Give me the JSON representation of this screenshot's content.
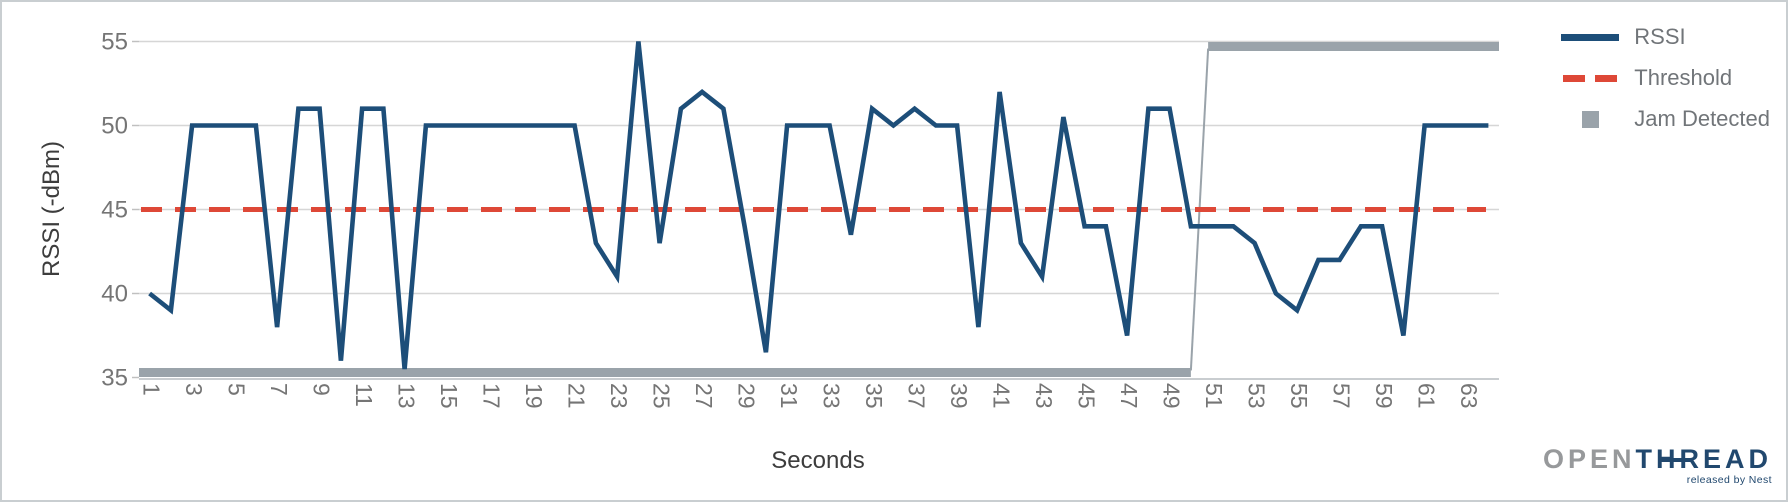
{
  "colors": {
    "rssi_line": "#1d4e79",
    "threshold_line": "#de4837",
    "jam_bar": "#9aa3aa",
    "gridline": "#d6d6d6",
    "axis_line": "#c9cdd0",
    "tick_text": "#757575",
    "axis_title_text": "#3d3d3d"
  },
  "legend": {
    "items": [
      {
        "label": "RSSI",
        "swatch": "solid-line"
      },
      {
        "label": "Threshold",
        "swatch": "dashed-line"
      },
      {
        "label": "Jam Detected",
        "swatch": "square"
      }
    ]
  },
  "logo": {
    "open": "OPEN",
    "thread": "THREAD",
    "tagline": "released by Nest"
  },
  "chart_data": {
    "type": "line",
    "title": "",
    "xlabel": "Seconds",
    "ylabel": "RSSI (-dBm)",
    "x_range": [
      0.5,
      64.5
    ],
    "ylim": [
      35,
      55
    ],
    "grid": true,
    "legend_position": "right-top",
    "y_ticks": [
      55,
      50,
      45,
      40,
      35
    ],
    "x_ticks": [
      1,
      3,
      5,
      7,
      9,
      11,
      13,
      15,
      17,
      19,
      21,
      23,
      25,
      27,
      29,
      31,
      33,
      35,
      37,
      39,
      41,
      43,
      45,
      47,
      49,
      51,
      53,
      55,
      57,
      59,
      61,
      63
    ],
    "x_start_second": 1,
    "series": [
      {
        "name": "RSSI",
        "style": "solid",
        "values": [
          40,
          39,
          50,
          50,
          50,
          50,
          38,
          51,
          51,
          36,
          51,
          51,
          35.5,
          50,
          50,
          50,
          50,
          50,
          50,
          50,
          50,
          43,
          41,
          55,
          43,
          51,
          52,
          51,
          44,
          36.5,
          50,
          50,
          50,
          43.5,
          51,
          50,
          51,
          50,
          50,
          38,
          52,
          43,
          41,
          50.5,
          44,
          44,
          37.5,
          51,
          51,
          44,
          44,
          44,
          43,
          40,
          39,
          42,
          42,
          44,
          44,
          37.5,
          50,
          50,
          50,
          50
        ]
      },
      {
        "name": "Threshold",
        "style": "dashed",
        "value": 45
      },
      {
        "name": "Jam Detected",
        "style": "thick-step",
        "low_value": 35.3,
        "high_value": 54.7,
        "low_seconds": [
          1,
          50
        ],
        "high_seconds": [
          51,
          64
        ],
        "description": "no jam seconds 1-50 (bar along bottom), jam detected seconds 51-64 (bar along top)"
      }
    ]
  }
}
